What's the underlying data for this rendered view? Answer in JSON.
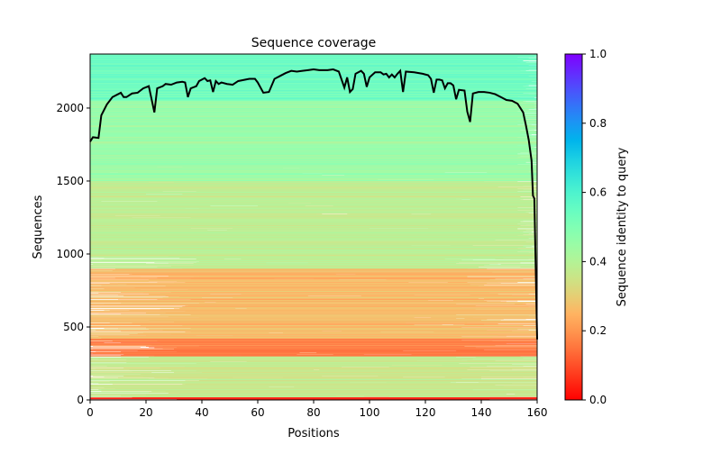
{
  "chart_data": {
    "type": "heatmap",
    "title": "Sequence coverage",
    "xlabel": "Positions",
    "ylabel": "Sequences",
    "xlim": [
      0,
      160
    ],
    "ylim": [
      0,
      2370
    ],
    "xticks": [
      "0",
      "20",
      "40",
      "60",
      "80",
      "100",
      "120",
      "140",
      "160"
    ],
    "yticks": [
      "0",
      "500",
      "1000",
      "1500",
      "2000"
    ],
    "colormap": "rainbow_r",
    "colorbar": {
      "label": "Sequence identity to query",
      "range": [
        0,
        1
      ],
      "ticks": [
        "0.0",
        "0.2",
        "0.4",
        "0.6",
        "0.8",
        "1.0"
      ]
    },
    "identity_bands": [
      {
        "from": 0,
        "to": 20,
        "identity": 0.05
      },
      {
        "from": 20,
        "to": 300,
        "identity": 0.36
      },
      {
        "from": 300,
        "to": 420,
        "identity": 0.16
      },
      {
        "from": 420,
        "to": 900,
        "identity": 0.26
      },
      {
        "from": 900,
        "to": 1500,
        "identity": 0.38
      },
      {
        "from": 1500,
        "to": 2050,
        "identity": 0.45
      },
      {
        "from": 2050,
        "to": 2370,
        "identity": 0.54
      }
    ],
    "coverage_line": {
      "color": "#000000",
      "x": [
        0,
        1,
        3,
        4,
        6,
        8,
        11,
        12,
        13,
        15,
        17,
        19,
        21,
        22,
        23,
        24,
        26,
        27,
        29,
        31,
        33,
        34,
        35,
        36,
        38,
        39,
        41,
        42,
        43,
        44,
        45,
        46,
        47,
        49,
        51,
        53,
        57,
        59,
        60,
        62,
        64,
        66,
        68,
        70,
        72,
        74,
        76,
        78,
        80,
        82,
        85,
        87,
        89,
        91,
        92,
        93,
        94,
        95,
        97,
        98,
        99,
        100,
        102,
        104,
        105,
        106,
        107,
        108,
        109,
        110,
        111,
        112,
        113,
        116,
        119,
        121,
        122,
        123,
        124,
        125,
        126,
        127,
        128,
        129,
        130,
        131,
        132,
        134,
        135,
        136,
        137,
        139,
        141,
        143,
        145,
        147,
        149,
        151,
        153,
        155,
        156,
        157,
        158,
        158.5,
        159,
        160
      ],
      "y": [
        1770,
        1800,
        1795,
        1950,
        2025,
        2075,
        2105,
        2075,
        2075,
        2100,
        2105,
        2135,
        2150,
        2060,
        1970,
        2135,
        2150,
        2165,
        2160,
        2175,
        2180,
        2175,
        2075,
        2135,
        2150,
        2185,
        2205,
        2185,
        2190,
        2110,
        2185,
        2165,
        2175,
        2165,
        2160,
        2185,
        2200,
        2200,
        2175,
        2105,
        2110,
        2200,
        2220,
        2240,
        2255,
        2250,
        2255,
        2260,
        2265,
        2260,
        2260,
        2265,
        2250,
        2140,
        2210,
        2110,
        2130,
        2235,
        2255,
        2235,
        2145,
        2210,
        2245,
        2245,
        2230,
        2235,
        2210,
        2230,
        2210,
        2235,
        2255,
        2110,
        2250,
        2245,
        2235,
        2225,
        2200,
        2105,
        2195,
        2195,
        2190,
        2135,
        2170,
        2170,
        2155,
        2060,
        2125,
        2120,
        1975,
        1905,
        2100,
        2110,
        2110,
        2105,
        2095,
        2075,
        2055,
        2050,
        2030,
        1970,
        1880,
        1780,
        1640,
        1400,
        1380,
        415
      ]
    }
  }
}
